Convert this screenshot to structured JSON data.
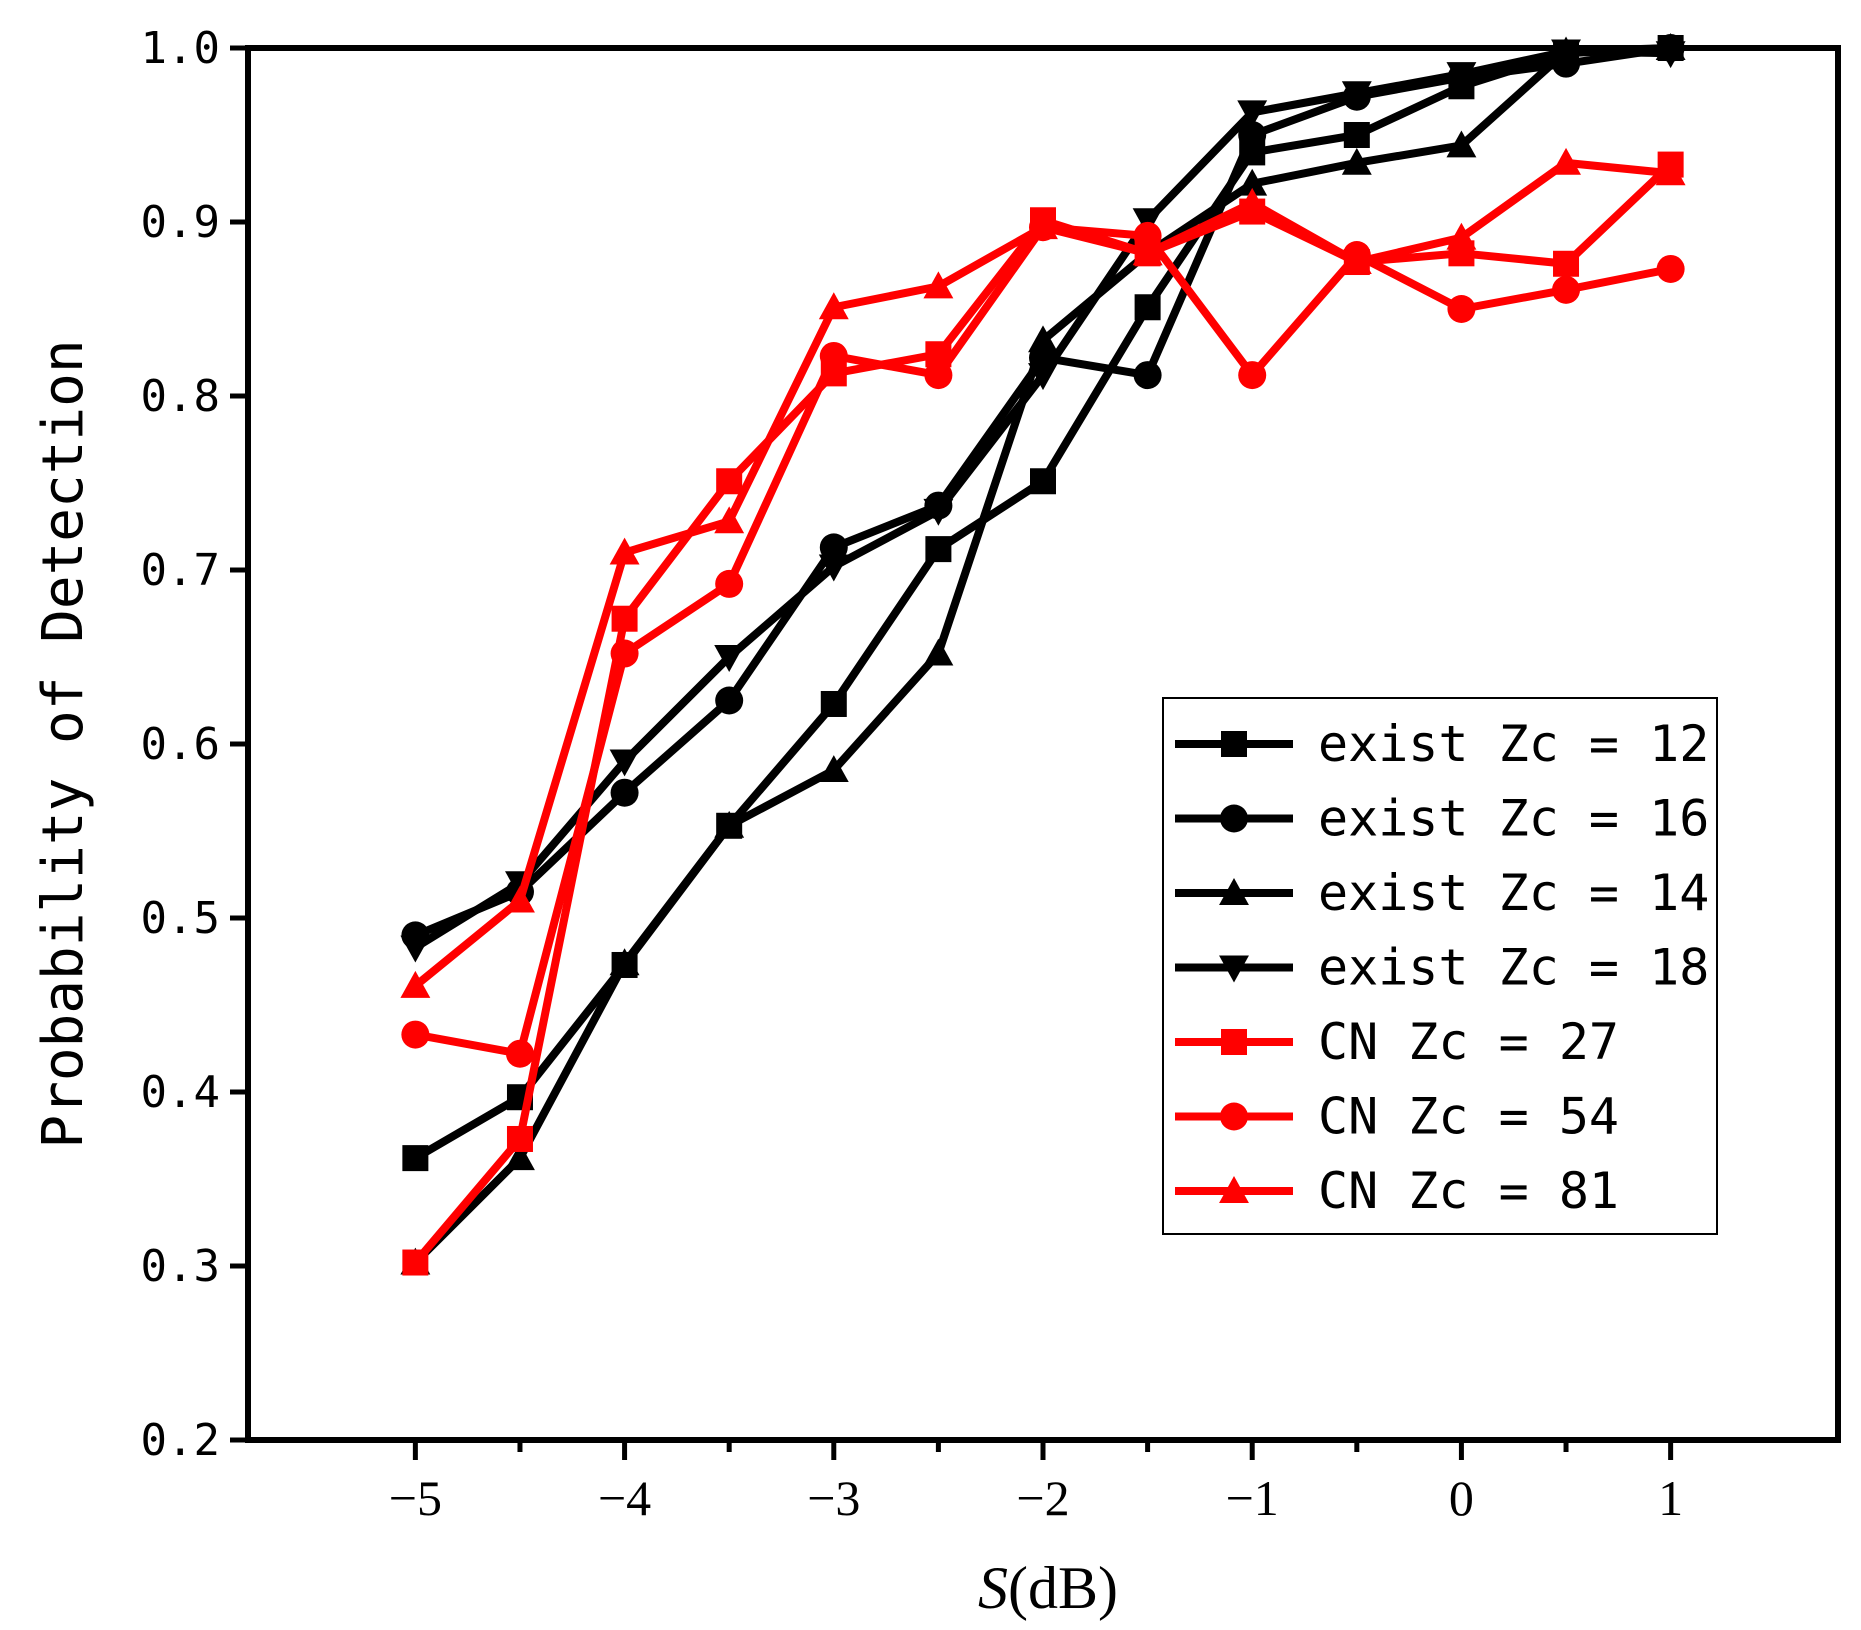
{
  "chart_data": {
    "type": "line",
    "title": "",
    "xlabel_italic": "S",
    "xlabel_rest": "(dB)",
    "ylabel": "Probability of Detection",
    "xlim": [
      -5.8,
      1.8
    ],
    "ylim": [
      0.2,
      1.0
    ],
    "xticks": [
      -5,
      -4.5,
      -4,
      -3.5,
      -3,
      -2.5,
      -2,
      -1.5,
      -1,
      -0.5,
      0,
      0.5,
      1
    ],
    "xtick_labels": [
      {
        "value": -5,
        "label": "−5"
      },
      {
        "value": -4,
        "label": "−4"
      },
      {
        "value": -3,
        "label": "−3"
      },
      {
        "value": -2,
        "label": "−2"
      },
      {
        "value": -1,
        "label": "−1"
      },
      {
        "value": 0,
        "label": "0"
      },
      {
        "value": 1,
        "label": "1"
      }
    ],
    "yticks": [
      {
        "value": 0.2,
        "label": "0.2"
      },
      {
        "value": 0.3,
        "label": "0.3"
      },
      {
        "value": 0.4,
        "label": "0.4"
      },
      {
        "value": 0.5,
        "label": "0.5"
      },
      {
        "value": 0.6,
        "label": "0.6"
      },
      {
        "value": 0.7,
        "label": "0.7"
      },
      {
        "value": 0.8,
        "label": "0.8"
      },
      {
        "value": 0.9,
        "label": "0.9"
      },
      {
        "value": 1.0,
        "label": "1.0"
      }
    ],
    "legend_position": "lower-right",
    "x": [
      -5,
      -4.5,
      -4,
      -3.5,
      -3,
      -2.5,
      -2,
      -1.5,
      -1,
      -0.5,
      0,
      0.5,
      1
    ],
    "series": [
      {
        "name": "exist Zc = 12",
        "color": "#000000",
        "marker": "square",
        "values": [
          0.362,
          0.397,
          0.473,
          0.553,
          0.623,
          0.712,
          0.751,
          0.851,
          0.94,
          0.95,
          0.978,
          0.997,
          1.0
        ]
      },
      {
        "name": "exist Zc = 16",
        "color": "#000000",
        "marker": "circle",
        "values": [
          0.49,
          0.515,
          0.572,
          0.625,
          0.713,
          0.737,
          0.822,
          0.812,
          0.95,
          0.972,
          0.983,
          0.991,
          1.0
        ]
      },
      {
        "name": "exist Zc = 14",
        "color": "#000000",
        "marker": "triangle-up",
        "values": [
          0.302,
          0.362,
          0.474,
          0.553,
          0.585,
          0.652,
          0.832,
          0.882,
          0.922,
          0.934,
          0.944,
          0.998,
          1.0
        ]
      },
      {
        "name": "exist Zc = 18",
        "color": "#000000",
        "marker": "triangle-down",
        "values": [
          0.483,
          0.52,
          0.59,
          0.65,
          0.702,
          0.734,
          0.812,
          0.901,
          0.963,
          0.974,
          0.985,
          0.998,
          0.997
        ]
      },
      {
        "name": "CN Zc = 27",
        "color": "#ff0000",
        "marker": "square",
        "values": [
          0.302,
          0.373,
          0.672,
          0.751,
          0.813,
          0.824,
          0.901,
          0.882,
          0.906,
          0.877,
          0.882,
          0.876,
          0.933
        ]
      },
      {
        "name": "CN Zc = 54",
        "color": "#ff0000",
        "marker": "circle",
        "values": [
          0.433,
          0.422,
          0.652,
          0.692,
          0.823,
          0.812,
          0.897,
          0.892,
          0.812,
          0.881,
          0.85,
          0.861,
          0.873
        ]
      },
      {
        "name": "CN Zc = 81",
        "color": "#ff0000",
        "marker": "triangle-up",
        "values": [
          0.461,
          0.51,
          0.71,
          0.728,
          0.851,
          0.863,
          0.897,
          0.882,
          0.911,
          0.877,
          0.891,
          0.934,
          0.928
        ]
      }
    ]
  }
}
